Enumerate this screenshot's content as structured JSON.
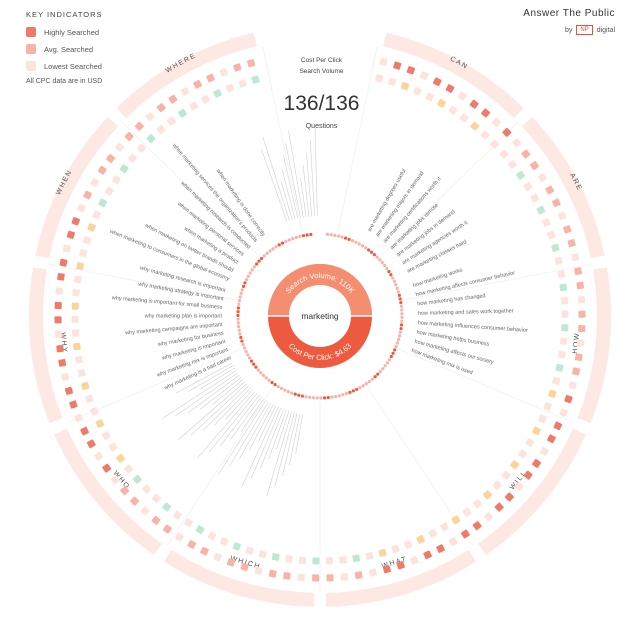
{
  "legend": {
    "title": "KEY INDICATORS",
    "items": [
      {
        "label": "Highly Searched",
        "color": "#f07a6a"
      },
      {
        "label": "Avg. Searched",
        "color": "#f8b2a6"
      },
      {
        "label": "Lowest Searched",
        "color": "#fde3dd"
      }
    ],
    "note": "All CPC data are in USD"
  },
  "brand": {
    "name": "Answer The Public",
    "by": "by",
    "np": "NP",
    "digital": "digital"
  },
  "header": {
    "cpc_label": "Cost Per Click",
    "volume_label": "Search Volume",
    "count": "136/136",
    "count_label": "Questions"
  },
  "hub": {
    "keyword": "marketing",
    "search_volume": "Search Volume: 110K",
    "cost_per_click": "Cost Per Click: $4.63"
  },
  "colors": {
    "accent": "#ee5a3f",
    "ring": "#fde8e3",
    "high": "#f07a6a",
    "avg": "#f8b2a6",
    "low": "#fde3dd",
    "cpc_green": "#bfe8d2",
    "cpc_orange": "#fbd49a"
  },
  "chart_data": {
    "type": "radial-question-wheel",
    "center_keyword": "marketing",
    "search_volume": "110K",
    "cost_per_click": "$4.63",
    "questions_total": 136,
    "questions_shown": 136,
    "categories": [
      "CAN",
      "ARE",
      "HOW",
      "WILL",
      "WHAT",
      "WHICH",
      "WHO",
      "WHY",
      "WHEN",
      "WHERE"
    ],
    "questions": [
      "how marketing works",
      "how marketing affects consumer behavior",
      "how marketing has changed",
      "how marketing and sales work together",
      "how marketing influences consumer behavior",
      "how marketing helps business",
      "how marketing affects our society",
      "how marketing mix is used",
      "are marketing degrees useful",
      "are marketing majors in demand",
      "are marketing certifications worth it",
      "are marketing jobs remote",
      "are marketing jobs in demand",
      "are marketing agencies worth it",
      "are marketing classes hard",
      "why marketing is a bad career",
      "why marketing mix is important",
      "why marketing is important",
      "why marketing for business",
      "why marketing campaigns are important",
      "why marketing plan is important",
      "why marketing is important for small business",
      "why marketing strategy is important",
      "why marketing research is important",
      "when marketing to consumers in the global economy",
      "when marketing on twitter brands should",
      "when marketing a product",
      "when marketing personal services",
      "when marketing research is conducted",
      "when marketing services the organization's products",
      "when marketing is done correctly"
    ]
  }
}
